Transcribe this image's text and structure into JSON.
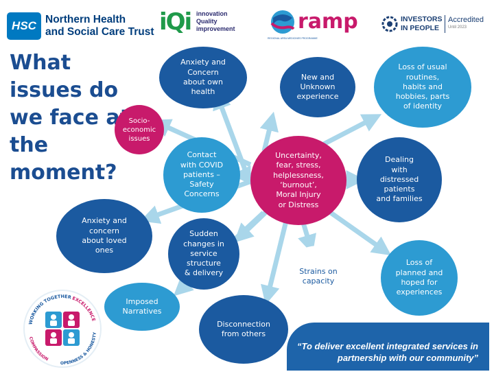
{
  "header": {
    "hsc_badge": "HSC",
    "trust_line1": "Northern Health",
    "trust_line2": "and Social Care Trust",
    "iqi_mark": "iQi",
    "iqi_line1": "innovation",
    "iqi_line2": "Quality",
    "iqi_line3": "improvement",
    "ramp_word": "ramp",
    "ramp_tagline": "REGIONAL AREA MEDICINES PROGRAMME",
    "iip_line1": "INVESTORS",
    "iip_line2": "IN PEOPLE",
    "iip_accredited": "Accredited",
    "iip_date": "Until 2023"
  },
  "title": "What\nissues do\nwe face at\nthe\nmoment?",
  "bubbles": {
    "socio": "Socio-\neconomic\nissues",
    "anxiety_health": "Anxiety and\nConcern\nabout own\nhealth",
    "new_unknown": "New and\nUnknown\nexperience",
    "loss_routines": "Loss of usual\nroutines,\nhabits and\nhobbies, parts\nof identity",
    "contact_covid": "Contact\nwith COVID\npatients –\nSafety\nConcerns",
    "uncertainty": "Uncertainty,\nfear, stress,\nhelplessness,\n‘burnout’,\nMoral Injury\nor Distress",
    "dealing": "Dealing\nwith\ndistressed\npatients\nand families",
    "anxiety_loved": "Anxiety and\nconcern\nabout loved\nones",
    "sudden_changes": "Sudden\nchanges in\nservice\nstructure\n& delivery",
    "strains": "Strains on\ncapacity",
    "loss_planned": "Loss of\nplanned and\nhoped for\nexperiences",
    "imposed": "Imposed\nNarratives",
    "disconnection": "Disconnection\nfrom others"
  },
  "values_badge": {
    "top_left": "WORKING TOGETHER",
    "top_right": "EXCELLENCE",
    "bottom_left": "COMPASSION",
    "bottom_right": "OPENNESS & HONESTY"
  },
  "footer": {
    "quote": "“To deliver excellent integrated services in partnership with our community”"
  },
  "colors": {
    "light_blue": "#2d9bd2",
    "dark_blue": "#1b5aa0",
    "magenta": "#c81a6b",
    "arrow": "#a9d6ea",
    "title": "#1b4d91"
  }
}
